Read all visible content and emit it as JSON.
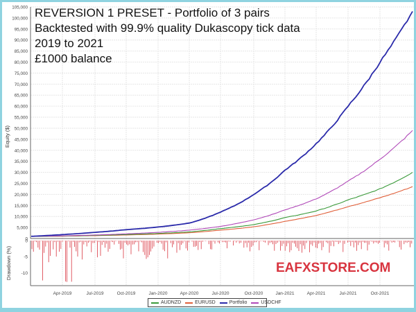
{
  "title_lines": [
    "REVERSION 1 PRESET - Portfolio of 3 pairs",
    "Backtested with 99.9% quality Dukascopy tick data",
    "2019 to 2021",
    "£1000 balance"
  ],
  "watermark": "EAFXSTORE.COM",
  "legend": [
    {
      "label": "AUDNZD",
      "color": "#3a9a3a"
    },
    {
      "label": "EURUSD",
      "color": "#e0603a"
    },
    {
      "label": "Portfolio",
      "color": "#2a2aaa"
    },
    {
      "label": "USDCHF",
      "color": "#b048b8"
    }
  ],
  "chart_data": [
    {
      "type": "line",
      "title": "REVERSION 1 PRESET - Portfolio of 3 pairs",
      "subtitle": "Backtested with 99.9% quality Dukascopy tick data / 2019 to 2021 / £1000 balance",
      "xlabel": "",
      "ylabel": "Equity ($)",
      "ylim": [
        0,
        105000
      ],
      "yticks": [
        0,
        5000,
        10000,
        15000,
        20000,
        25000,
        30000,
        35000,
        40000,
        45000,
        50000,
        55000,
        60000,
        65000,
        70000,
        75000,
        80000,
        85000,
        90000,
        95000,
        100000,
        105000
      ],
      "ytick_labels": [
        "0",
        "5,000",
        "10,000",
        "15,000",
        "20,000",
        "25,000",
        "30,000",
        "35,000",
        "40,000",
        "45,000",
        "50,000",
        "55,000",
        "60,000",
        "65,000",
        "70,000",
        "75,000",
        "80,000",
        "85,000",
        "90,000",
        "95,000",
        "100,000",
        "105,000"
      ],
      "x_tick_labels": [
        "Apr-2019",
        "Jul-2019",
        "Oct-2019",
        "Jan-2020",
        "Apr-2020",
        "Jul-2020",
        "Oct-2020",
        "Jan-2021",
        "Apr-2021",
        "Jul-2021",
        "Oct-2021"
      ],
      "grid": true,
      "legend_position": "bottom",
      "x": [
        "Jan-2019",
        "Apr-2019",
        "Jul-2019",
        "Oct-2019",
        "Jan-2020",
        "Apr-2020",
        "Jul-2020",
        "Oct-2020",
        "Jan-2021",
        "Apr-2021",
        "Jul-2021",
        "Oct-2021",
        "Dec-2021"
      ],
      "series": [
        {
          "name": "Portfolio",
          "color": "#2a2aaa",
          "values": [
            1000,
            1800,
            2800,
            4000,
            5200,
            7000,
            12000,
            20000,
            31000,
            43000,
            60000,
            80000,
            103000
          ]
        },
        {
          "name": "USDCHF",
          "color": "#b048b8",
          "values": [
            1000,
            1200,
            1600,
            2100,
            2800,
            3800,
            5500,
            8500,
            13000,
            18000,
            26000,
            36000,
            49000
          ]
        },
        {
          "name": "AUDNZD",
          "color": "#3a9a3a",
          "values": [
            1000,
            1100,
            1400,
            1800,
            2300,
            3000,
            4500,
            6300,
            9500,
            12500,
            17500,
            22500,
            30000
          ]
        },
        {
          "name": "EURUSD",
          "color": "#e0603a",
          "values": [
            1000,
            1050,
            1300,
            1600,
            2000,
            2600,
            3800,
            5300,
            7800,
            10500,
            14500,
            18500,
            23500
          ]
        }
      ]
    },
    {
      "type": "bar",
      "title": "",
      "ylabel": "Drawdown (%)",
      "ylim": [
        -14,
        0
      ],
      "yticks": [
        0,
        -5,
        -10
      ],
      "ytick_labels": [
        "0",
        "-5",
        "-10"
      ],
      "color": "#d8343f",
      "min_value": -13,
      "note": "Dense series of negative drawdown spikes; deepest (~-12 to -13%) in early 2019, mostly under -5% afterwards"
    }
  ]
}
